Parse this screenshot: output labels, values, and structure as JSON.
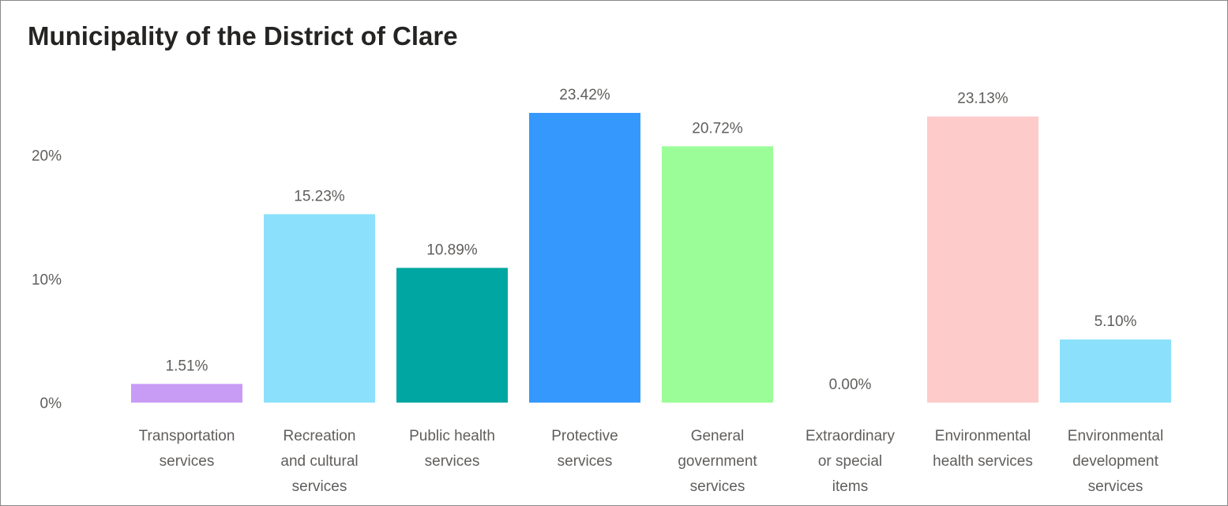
{
  "chart_data": {
    "type": "bar",
    "title": "Municipality of the District of Clare",
    "categories": [
      [
        "Transportation",
        "services"
      ],
      [
        "Recreation",
        "and cultural",
        "services"
      ],
      [
        "Public health",
        "services"
      ],
      [
        "Protective",
        "services"
      ],
      [
        "General",
        "government",
        "services"
      ],
      [
        "Extraordinary",
        "or special",
        "items"
      ],
      [
        "Environmental",
        "health services"
      ],
      [
        "Environmental",
        "development",
        "services"
      ]
    ],
    "values": [
      1.51,
      15.23,
      10.89,
      23.42,
      20.72,
      0.0,
      23.13,
      5.1
    ],
    "value_labels": [
      "1.51%",
      "15.23%",
      "10.89%",
      "23.42%",
      "20.72%",
      "0.00%",
      "23.13%",
      "5.10%"
    ],
    "colors": [
      "#c89bf5",
      "#8be1fb",
      "#00a6a1",
      "#3598fd",
      "#9bfd98",
      "#fe9c99",
      "#fdcbca",
      "#8be1fb"
    ],
    "yticks": [
      {
        "value": 0,
        "label": "0%"
      },
      {
        "value": 10,
        "label": "10%"
      },
      {
        "value": 20,
        "label": "20%"
      }
    ],
    "ylim": [
      0,
      23.42
    ],
    "xlabel": "",
    "ylabel": "",
    "grid": false,
    "legend": "none"
  }
}
